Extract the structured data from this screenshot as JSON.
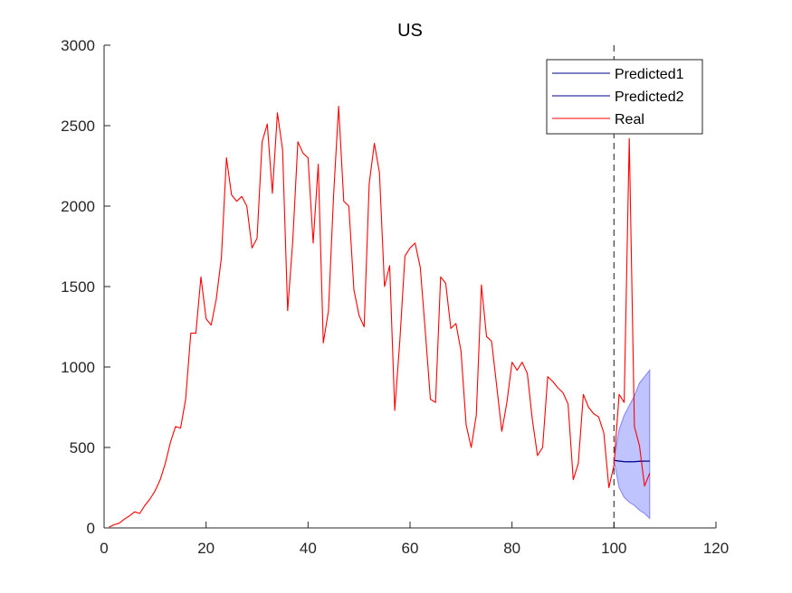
{
  "chart_data": {
    "type": "line",
    "title": "US",
    "xlabel": "",
    "ylabel": "",
    "xlim": [
      0,
      120
    ],
    "ylim": [
      0,
      3000
    ],
    "x_ticks": [
      0,
      20,
      40,
      60,
      80,
      100,
      120
    ],
    "y_ticks": [
      0,
      500,
      1000,
      1500,
      2000,
      2500,
      3000
    ],
    "grid": false,
    "legend_position": "top-right",
    "forecast_start": 100,
    "colors": {
      "real": "#ff0000",
      "predicted": "#00008b",
      "band_fill": "#aab0ff",
      "band_edge": "#8080ff",
      "divider": "#404040",
      "axis": "#262626"
    },
    "series": [
      {
        "name": "Predicted1",
        "x": [
          100,
          101,
          102,
          103,
          104,
          105,
          106,
          107
        ],
        "y": [
          420,
          415,
          412,
          411,
          412,
          414,
          415,
          415
        ]
      },
      {
        "name": "Predicted2",
        "x": [
          100,
          101,
          102,
          103,
          104,
          105,
          106,
          107
        ],
        "y": [
          420,
          415,
          412,
          411,
          412,
          414,
          415,
          415
        ]
      },
      {
        "name": "Real",
        "x": [
          1,
          2,
          3,
          4,
          5,
          6,
          7,
          8,
          9,
          10,
          11,
          12,
          13,
          14,
          15,
          16,
          17,
          18,
          19,
          20,
          21,
          22,
          23,
          24,
          25,
          26,
          27,
          28,
          29,
          30,
          31,
          32,
          33,
          34,
          35,
          36,
          37,
          38,
          39,
          40,
          41,
          42,
          43,
          44,
          45,
          46,
          47,
          48,
          49,
          50,
          51,
          52,
          53,
          54,
          55,
          56,
          57,
          58,
          59,
          60,
          61,
          62,
          63,
          64,
          65,
          66,
          67,
          68,
          69,
          70,
          71,
          72,
          73,
          74,
          75,
          76,
          77,
          78,
          79,
          80,
          81,
          82,
          83,
          84,
          85,
          86,
          87,
          88,
          89,
          90,
          91,
          92,
          93,
          94,
          95,
          96,
          97,
          98,
          99,
          100,
          101,
          102,
          103,
          104,
          105,
          106,
          107
        ],
        "y": [
          5,
          20,
          30,
          55,
          75,
          100,
          90,
          140,
          180,
          230,
          300,
          400,
          530,
          630,
          620,
          800,
          1210,
          1210,
          1560,
          1300,
          1260,
          1420,
          1680,
          2300,
          2070,
          2030,
          2060,
          2000,
          1740,
          1800,
          2400,
          2510,
          2080,
          2580,
          2350,
          1350,
          1780,
          2400,
          2330,
          2300,
          1770,
          2260,
          1150,
          1350,
          2060,
          2620,
          2030,
          2000,
          1480,
          1320,
          1250,
          2140,
          2390,
          2210,
          1500,
          1630,
          730,
          1160,
          1690,
          1740,
          1770,
          1620,
          1220,
          800,
          780,
          1560,
          1520,
          1240,
          1270,
          1100,
          640,
          500,
          700,
          1510,
          1190,
          1160,
          880,
          600,
          780,
          1030,
          980,
          1030,
          960,
          670,
          450,
          500,
          940,
          910,
          870,
          840,
          770,
          300,
          400,
          830,
          750,
          710,
          690,
          590,
          250,
          390,
          830,
          780,
          2420,
          630,
          510,
          260,
          340
        ]
      }
    ],
    "confidence_band": {
      "x": [
        100,
        101,
        102,
        103,
        104,
        105,
        106,
        107
      ],
      "lower": [
        420,
        250,
        190,
        160,
        140,
        110,
        90,
        60
      ],
      "upper": [
        420,
        610,
        700,
        760,
        820,
        900,
        940,
        980
      ]
    },
    "legend": [
      "Predicted1",
      "Predicted2",
      "Real"
    ]
  }
}
